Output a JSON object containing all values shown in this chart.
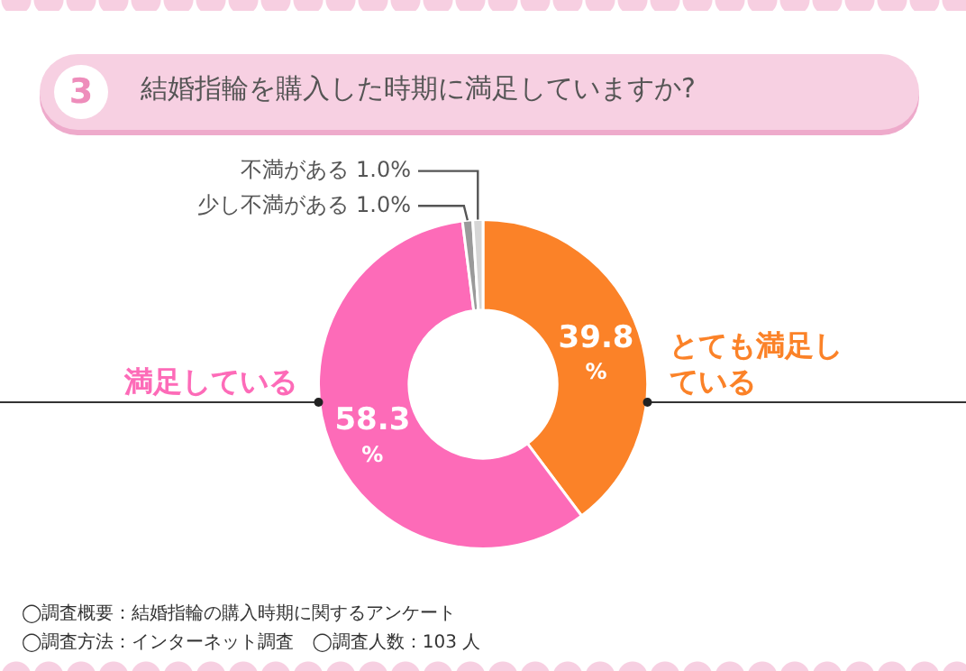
{
  "chart_data": {
    "type": "donut",
    "title": "結婚指輪を購入した時期に満足していますか?",
    "categories": [
      "とても満足している",
      "満足している",
      "少し不満がある",
      "不満がある"
    ],
    "values": [
      39.8,
      58.3,
      1.0,
      1.0
    ],
    "colors": [
      "#fb8228",
      "#fd6bb8",
      "#9a9a9a",
      "#d6d6d6"
    ],
    "value_labels": [
      "39.8%",
      "58.3%",
      "1.0%",
      "1.0%"
    ],
    "legend": false,
    "annotations": [
      "3",
      "◯調査概要：結婚指輪の購入時期に関するアンケート",
      "◯調査方法：インターネット調査　◯調査人数：103 人"
    ]
  }
}
